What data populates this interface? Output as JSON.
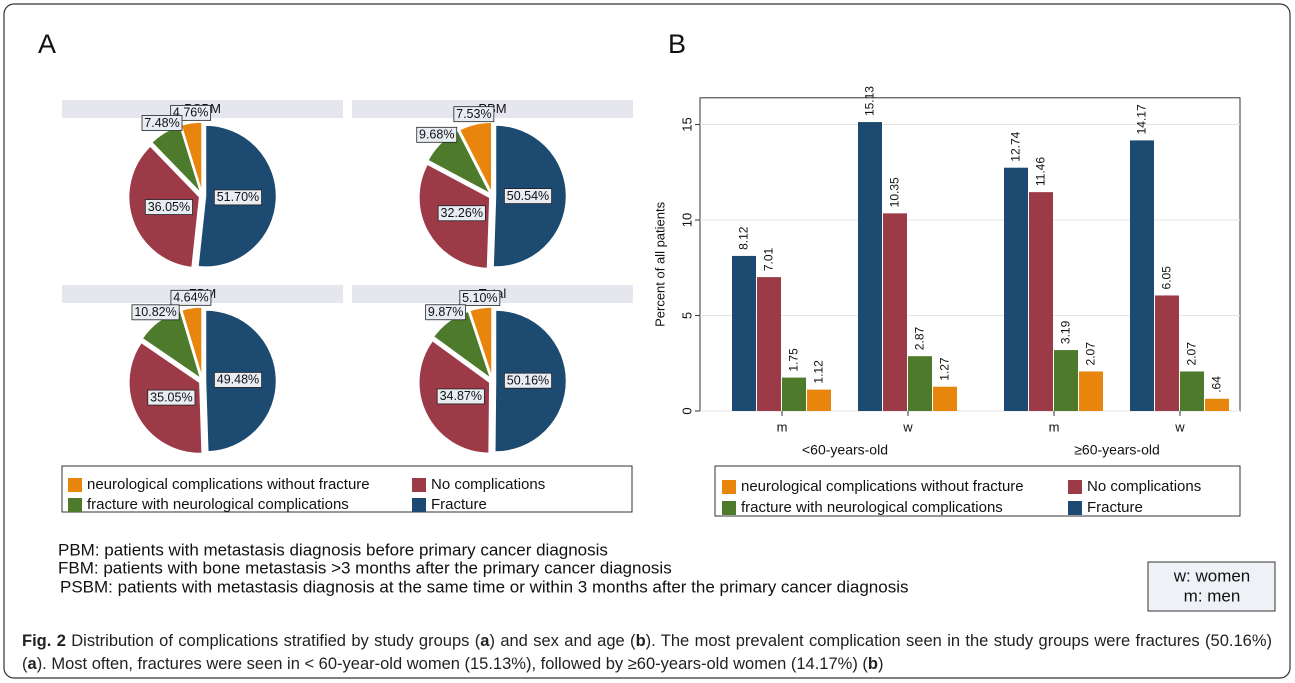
{
  "panel_labels": [
    "A",
    "B"
  ],
  "chart_data": [
    {
      "type": "pie",
      "categories": [
        "neurological complications without fracture",
        "fracture with neurological complications",
        "No complications",
        "Fracture"
      ],
      "colors": [
        "#e8850c",
        "#4e7a2c",
        "#9c3b47",
        "#1d4a70"
      ],
      "pies": [
        {
          "title": "PSBM",
          "values": [
            4.76,
            7.48,
            36.05,
            51.7
          ],
          "value_labels": [
            "4.76%",
            "7.48%",
            "36.05%",
            "51.70%"
          ]
        },
        {
          "title": "PBM",
          "values": [
            7.53,
            9.68,
            32.26,
            50.54
          ],
          "value_labels": [
            "7.53%",
            "9.68%",
            "32.26%",
            "50.54%"
          ]
        },
        {
          "title": "FBM",
          "values": [
            4.64,
            10.82,
            35.05,
            49.48
          ],
          "value_labels": [
            "4.64%",
            "10.82%",
            "35.05%",
            "49.48%"
          ]
        },
        {
          "title": "Total",
          "values": [
            5.1,
            9.87,
            34.87,
            50.16
          ],
          "value_labels": [
            "5.10%",
            "9.87%",
            "34.87%",
            "50.16%"
          ]
        }
      ]
    },
    {
      "type": "bar",
      "ylabel": "Percent of all patients",
      "categories": [
        "m",
        "w",
        "m",
        "w"
      ],
      "groups": [
        "<60-years-old",
        "≥60-years-old"
      ],
      "series": [
        {
          "name": "Fracture",
          "color": "#1d4a70",
          "values": [
            8.12,
            15.13,
            12.74,
            14.17
          ]
        },
        {
          "name": "No complications",
          "color": "#9c3b47",
          "values": [
            7.01,
            10.35,
            11.46,
            6.05
          ]
        },
        {
          "name": "fracture with neurological complications",
          "color": "#4e7a2c",
          "values": [
            1.75,
            2.87,
            3.19,
            2.07
          ]
        },
        {
          "name": "neurological complications without fracture",
          "color": "#e8850c",
          "values": [
            1.12,
            1.27,
            2.07,
            0.64
          ],
          "value_labels": [
            "1.12",
            "1.27",
            "2.07",
            ".64"
          ]
        }
      ],
      "ylim": [
        0,
        16.4
      ],
      "yticks": [
        0,
        5,
        10,
        15
      ],
      "grid": true
    }
  ],
  "notes": [
    "PBM: patients with metastasis diagnosis before primary cancer diagnosis",
    "FBM: patients with bone metastasis >3 months after the primary cancer diagnosis",
    "PSBM: patients with metastasis diagnosis at the same time or within 3 months after the primary cancer diagnosis"
  ],
  "key": [
    "w: women",
    "m: men"
  ],
  "caption": [
    {
      "text": "Fig. 2",
      "bold": true
    },
    {
      "text": " Distribution of complications stratified by study groups (",
      "bold": false
    },
    {
      "text": "a",
      "bold": true
    },
    {
      "text": ") and sex and age (",
      "bold": false
    },
    {
      "text": "b",
      "bold": true
    },
    {
      "text": "). The most prevalent complication seen in the study groups were fractures (50.16%) (",
      "bold": false
    },
    {
      "text": "a",
      "bold": true
    },
    {
      "text": "). Most often, fractures were seen in < 60-year-old women (15.13%), followed by ≥60-years-old women (14.17%) (",
      "bold": false
    },
    {
      "text": "b",
      "bold": true
    },
    {
      "text": ")",
      "bold": false
    }
  ]
}
